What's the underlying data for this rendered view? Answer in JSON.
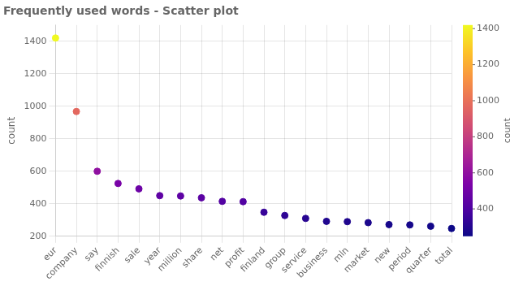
{
  "chart_data": {
    "type": "scatter",
    "title": "Frequently used words - Scatter plot",
    "ylabel": "count",
    "categories": [
      "eur",
      "company",
      "say",
      "finnish",
      "sale",
      "year",
      "million",
      "share",
      "net",
      "profit",
      "finland",
      "group",
      "service",
      "business",
      "mln",
      "market",
      "new",
      "period",
      "quarter",
      "total"
    ],
    "values": [
      1420,
      968,
      600,
      525,
      492,
      450,
      448,
      437,
      415,
      413,
      348,
      328,
      310,
      292,
      290,
      284,
      272,
      270,
      262,
      248
    ],
    "ylim": [
      200,
      1500
    ],
    "yticks": [
      200,
      400,
      600,
      800,
      1000,
      1200,
      1400
    ],
    "grid": true,
    "colorbar": {
      "label": "count",
      "range": [
        248,
        1420
      ],
      "ticks": [
        400,
        600,
        800,
        1000,
        1200,
        1400
      ]
    }
  }
}
